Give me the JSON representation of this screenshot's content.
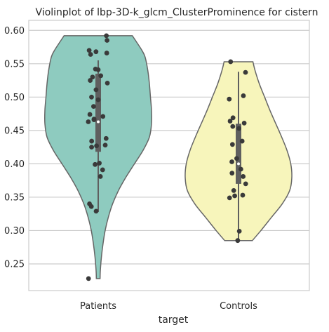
{
  "chart_data": {
    "type": "violin",
    "title": "Violinplot of lbp-3D-k_glcm_ClusterProminence for cistern",
    "xlabel": "target",
    "ylabel": "",
    "categories": [
      "Patients",
      "Controls"
    ],
    "ylim": [
      0.21,
      0.615
    ],
    "yticks": [
      "0.25",
      "0.30",
      "0.35",
      "0.40",
      "0.45",
      "0.50",
      "0.55",
      "0.60"
    ],
    "grid": true,
    "series": [
      {
        "category": "Patients",
        "color": "#8ecbbf",
        "range": [
          0.228,
          0.592
        ],
        "box": {
          "q1": 0.418,
          "median": 0.463,
          "q3": 0.535,
          "whisker_low": 0.328,
          "whisker_high": 0.555
        },
        "density": [
          [
            0.228,
            0.035
          ],
          [
            0.24,
            0.04
          ],
          [
            0.26,
            0.06
          ],
          [
            0.28,
            0.09
          ],
          [
            0.3,
            0.13
          ],
          [
            0.32,
            0.19
          ],
          [
            0.34,
            0.27
          ],
          [
            0.36,
            0.38
          ],
          [
            0.38,
            0.52
          ],
          [
            0.4,
            0.68
          ],
          [
            0.42,
            0.84
          ],
          [
            0.44,
            0.96
          ],
          [
            0.46,
            1.0
          ],
          [
            0.48,
            1.0
          ],
          [
            0.5,
            0.98
          ],
          [
            0.52,
            0.96
          ],
          [
            0.54,
            0.93
          ],
          [
            0.56,
            0.88
          ],
          [
            0.57,
            0.82
          ],
          [
            0.58,
            0.74
          ],
          [
            0.592,
            0.64
          ]
        ],
        "points": [
          0.592,
          0.585,
          0.57,
          0.568,
          0.566,
          0.564,
          0.542,
          0.541,
          0.532,
          0.53,
          0.525,
          0.521,
          0.511,
          0.5,
          0.496,
          0.486,
          0.474,
          0.471,
          0.467,
          0.466,
          0.463,
          0.438,
          0.434,
          0.428,
          0.427,
          0.425,
          0.401,
          0.399,
          0.391,
          0.381,
          0.34,
          0.336,
          0.329,
          0.228
        ]
      },
      {
        "category": "Controls",
        "color": "#f7f5bb",
        "range": [
          0.285,
          0.553
        ],
        "box": {
          "q1": 0.37,
          "median": 0.4,
          "q3": 0.46,
          "whisker_low": 0.285,
          "whisker_high": 0.538
        },
        "density": [
          [
            0.285,
            0.26
          ],
          [
            0.3,
            0.42
          ],
          [
            0.32,
            0.62
          ],
          [
            0.34,
            0.82
          ],
          [
            0.36,
            0.96
          ],
          [
            0.38,
            1.0
          ],
          [
            0.4,
            0.98
          ],
          [
            0.42,
            0.91
          ],
          [
            0.44,
            0.81
          ],
          [
            0.46,
            0.7
          ],
          [
            0.48,
            0.59
          ],
          [
            0.5,
            0.49
          ],
          [
            0.52,
            0.39
          ],
          [
            0.54,
            0.31
          ],
          [
            0.553,
            0.27
          ]
        ],
        "points": [
          0.553,
          0.537,
          0.502,
          0.497,
          0.469,
          0.464,
          0.461,
          0.456,
          0.453,
          0.434,
          0.429,
          0.408,
          0.403,
          0.392,
          0.386,
          0.381,
          0.37,
          0.36,
          0.353,
          0.352,
          0.349,
          0.299,
          0.285
        ]
      }
    ]
  }
}
